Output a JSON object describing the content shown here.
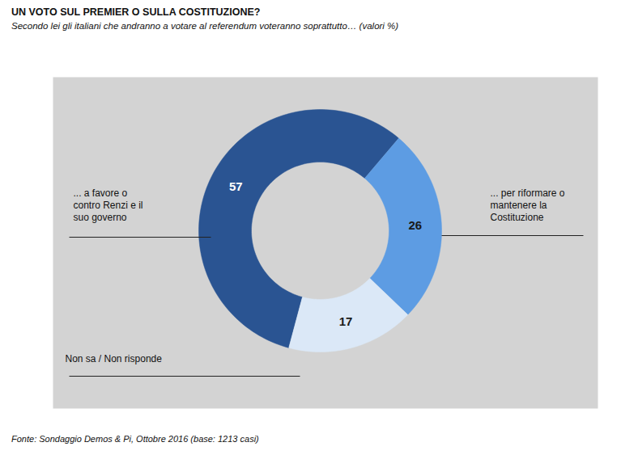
{
  "chart_data": {
    "type": "donut",
    "title": "UN VOTO SUL PREMIER O SULLA COSTITUZIONE?",
    "subtitle": "Secondo lei gli italiani che andranno a votare al referendum voteranno soprattutto… (valori %)",
    "caption": "Fonte: Sondaggio Demos & Pi, Ottobre 2016 (base: 1213 casi)",
    "categories": [
      "... a favore o contro Renzi e il suo governo",
      "... per riformare o mantenere la Costituzione",
      "Non sa / Non risponde"
    ],
    "values": [
      57,
      26,
      17
    ],
    "colors": [
      "#2a5492",
      "#5d9ce3",
      "#dbe8f7"
    ],
    "data_labels": true
  }
}
